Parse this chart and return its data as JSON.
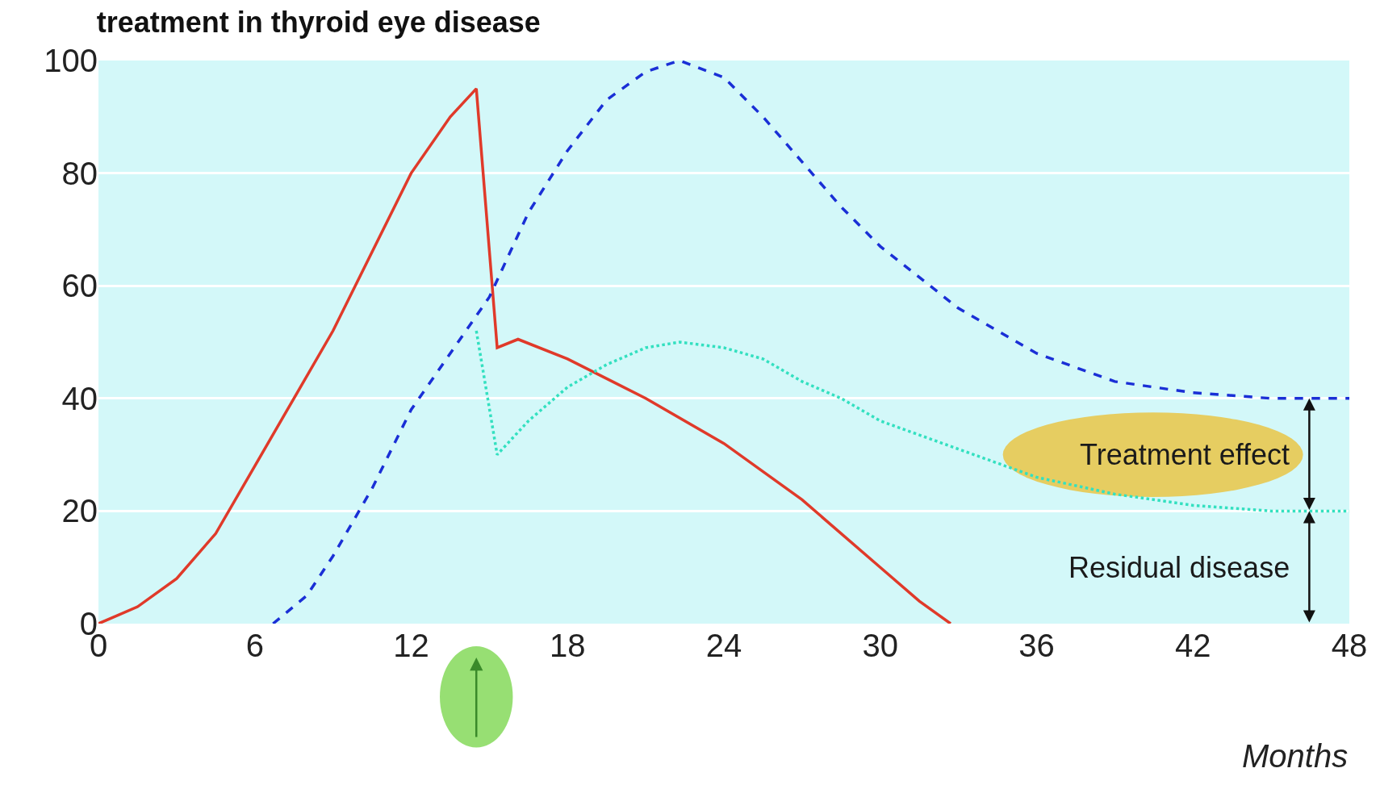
{
  "chart_data": {
    "type": "line",
    "title": "treatment in thyroid eye disease",
    "xlabel": "Months",
    "xlim": [
      0,
      48
    ],
    "xticks": [
      0,
      6,
      12,
      18,
      24,
      30,
      36,
      42,
      48
    ],
    "ylim": [
      0,
      100
    ],
    "yticks": [
      0,
      20,
      40,
      60,
      80,
      100
    ],
    "grid": "y",
    "legend": false,
    "marker": "none",
    "series": [
      {
        "color": "#e03a2a",
        "line_style": "solid",
        "x": [
          0,
          1.5,
          3,
          4.5,
          6,
          7.5,
          9,
          10.5,
          12,
          13.5,
          14.5,
          15.3,
          16.1,
          18,
          21,
          24,
          27,
          30,
          31.5,
          32.7
        ],
        "values": [
          0,
          3,
          8,
          16,
          28,
          40,
          52,
          66,
          80,
          90,
          95,
          49,
          50.5,
          47,
          40,
          32,
          22,
          10,
          4,
          0
        ]
      },
      {
        "color": "#1a2fd6",
        "line_style": "dashed",
        "x": [
          6.7,
          8,
          9,
          10.5,
          12,
          13.5,
          15,
          16.5,
          18,
          19.5,
          21,
          22.3,
          24,
          25.5,
          27,
          28.5,
          30,
          33,
          36,
          39,
          42,
          45,
          48
        ],
        "values": [
          0,
          5,
          12,
          24,
          38,
          48,
          58,
          73,
          84,
          93,
          98,
          100,
          97,
          90,
          82,
          74,
          67,
          56,
          48,
          43,
          41,
          40,
          40
        ]
      },
      {
        "color": "#33e0c0",
        "line_style": "dotted",
        "x": [
          14.5,
          15.3,
          16.5,
          18,
          19.5,
          21,
          22.3,
          24,
          25.5,
          27,
          28.5,
          30,
          33,
          36,
          39,
          42,
          45,
          48
        ],
        "values": [
          52,
          30,
          36,
          42,
          46,
          49,
          50,
          49,
          47,
          43,
          40,
          36,
          31,
          26,
          23,
          21,
          20,
          20
        ]
      }
    ],
    "annotations": [
      "Treatment effect",
      "Residual disease"
    ]
  }
}
